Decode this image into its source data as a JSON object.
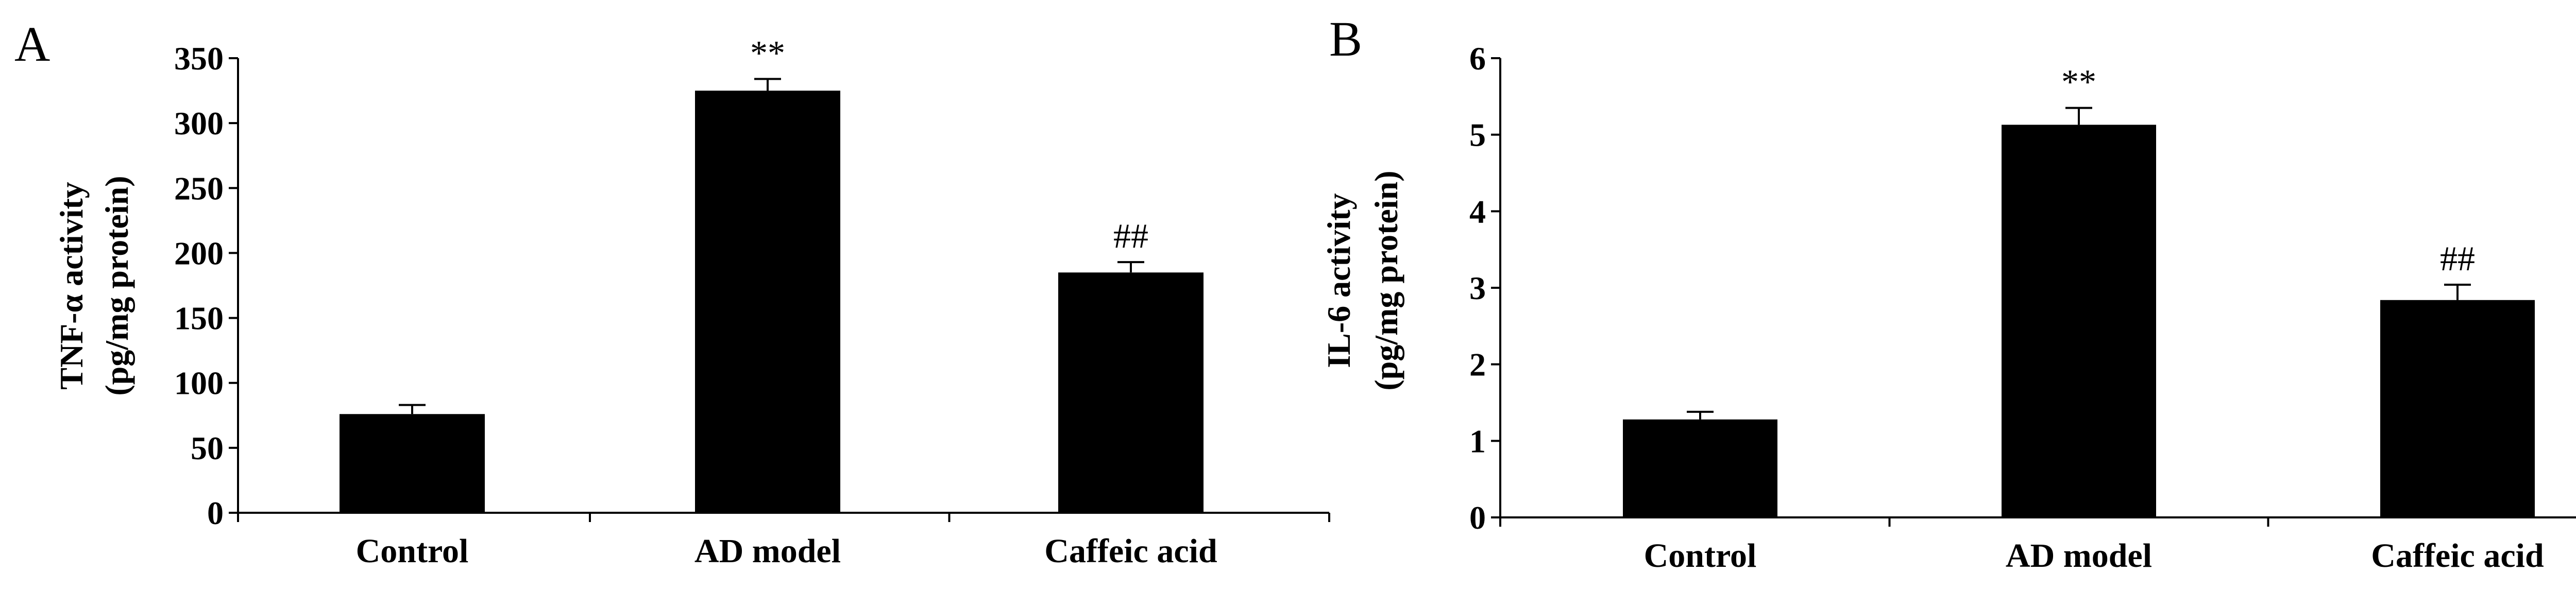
{
  "chart_data": [
    {
      "panel": "A",
      "type": "bar",
      "categories": [
        "Control",
        "AD model",
        "Caffeic acid"
      ],
      "series": [
        {
          "values": [
            76,
            325,
            185
          ],
          "errors": [
            7,
            9,
            8
          ],
          "color": "#000000"
        }
      ],
      "annotations": [
        "",
        "**",
        "##"
      ],
      "ylabel_lines": [
        "TNF-α  activity",
        "(pg/mg protein)"
      ],
      "yticks": [
        0,
        50,
        100,
        150,
        200,
        250,
        300,
        350
      ],
      "ylim": [
        0,
        350
      ],
      "grid": false,
      "legend": "none"
    },
    {
      "panel": "B",
      "type": "bar",
      "categories": [
        "Control",
        "AD model",
        "Caffeic acid"
      ],
      "series": [
        {
          "values": [
            1.28,
            5.13,
            2.84
          ],
          "errors": [
            0.1,
            0.22,
            0.2
          ],
          "color": "#000000"
        }
      ],
      "annotations": [
        "",
        "**",
        "##"
      ],
      "ylabel_lines": [
        "IL-6 activity",
        "(pg/mg protein)"
      ],
      "yticks": [
        0,
        1,
        2,
        3,
        4,
        5,
        6
      ],
      "ylim": [
        0,
        6
      ],
      "grid": false,
      "legend": "none"
    }
  ]
}
